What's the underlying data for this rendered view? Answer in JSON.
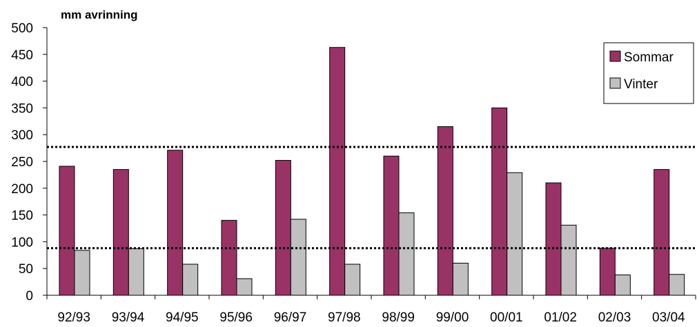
{
  "chart_data": {
    "type": "bar",
    "title": "mm avrinning",
    "categories": [
      "92/93",
      "93/94",
      "94/95",
      "95/96",
      "96/97",
      "97/98",
      "98/99",
      "99/00",
      "00/01",
      "01/02",
      "02/03",
      "03/04"
    ],
    "series": [
      {
        "name": "Sommar",
        "color": "#993366",
        "values": [
          241,
          235,
          271,
          140,
          252,
          463,
          260,
          315,
          350,
          210,
          88,
          235
        ]
      },
      {
        "name": "Vinter",
        "color": "#c0c0c0",
        "values": [
          84,
          87,
          58,
          31,
          142,
          58,
          154,
          60,
          229,
          131,
          38,
          39
        ]
      }
    ],
    "yticks": [
      "0",
      "50",
      "100",
      "150",
      "200",
      "250",
      "300",
      "350",
      "400",
      "450",
      "500"
    ],
    "ylim": [
      0,
      500
    ],
    "reference_lines": [
      277,
      88
    ],
    "reference_line_style": "dotted",
    "legend_position": "right",
    "grid": false
  }
}
